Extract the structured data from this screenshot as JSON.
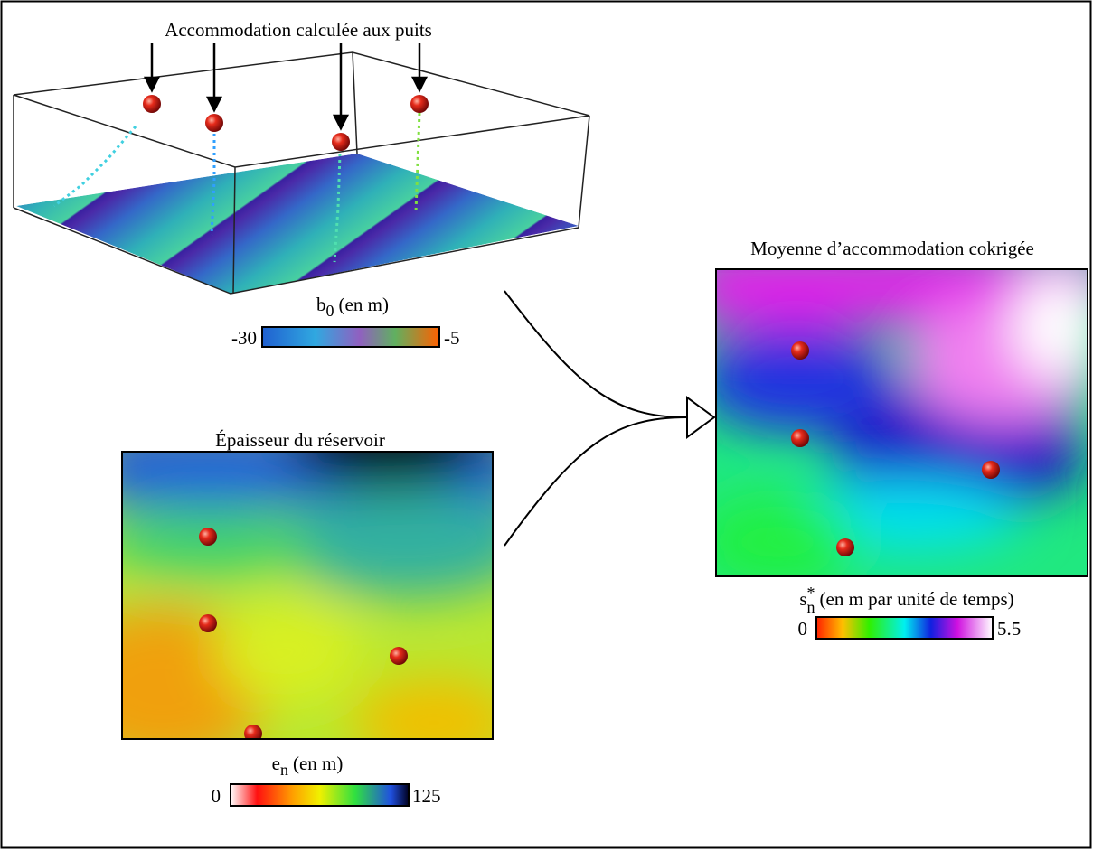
{
  "panels": {
    "accommodation_3d": {
      "annotation": "Accommodation calculée aux puits",
      "colorbar": {
        "symbol": "b",
        "subscript": "0",
        "unit": "(en m)",
        "min": -30,
        "max": -5
      }
    },
    "thickness": {
      "title": "Épaisseur du réservoir",
      "colorbar": {
        "symbol": "e",
        "subscript": "n",
        "unit": "(en m)",
        "min": 0,
        "max": 125
      }
    },
    "cokriged": {
      "title": "Moyenne d’accommodation cokrigée",
      "colorbar": {
        "symbol": "s",
        "subscript": "n",
        "superscript": "*",
        "unit": "(en m par unité de temps)",
        "min": 0,
        "max": 5.5
      }
    }
  }
}
